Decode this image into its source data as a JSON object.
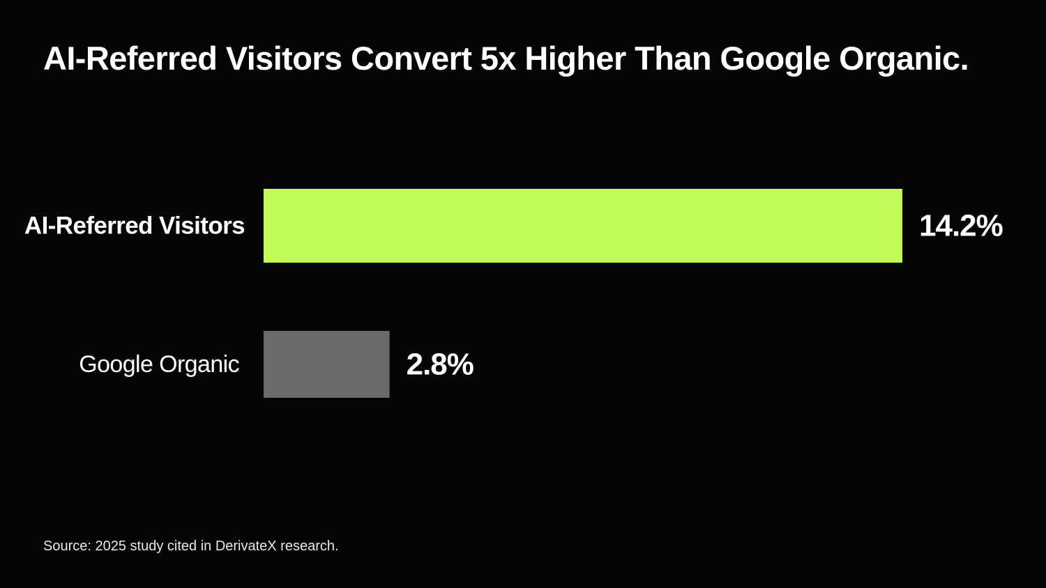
{
  "chart_data": {
    "type": "bar",
    "orientation": "horizontal",
    "title": "AI-Referred Visitors Convert 5x Higher Than Google Organic.",
    "categories": [
      "AI-Referred Visitors",
      "Google Organic"
    ],
    "values": [
      14.2,
      2.8
    ],
    "value_labels": [
      "14.2%",
      "2.8%"
    ],
    "unit": "%",
    "colors": [
      "#c1fb57",
      "#6a6a6a"
    ],
    "xlim": [
      0,
      14.2
    ],
    "grid": false,
    "legend": "none",
    "xlabel": "",
    "ylabel": ""
  },
  "source": "Source: 2025 study cited in DerivateX research.",
  "theme": {
    "background": "#050505",
    "text": "#ffffff",
    "accent": "#c1fb57"
  }
}
